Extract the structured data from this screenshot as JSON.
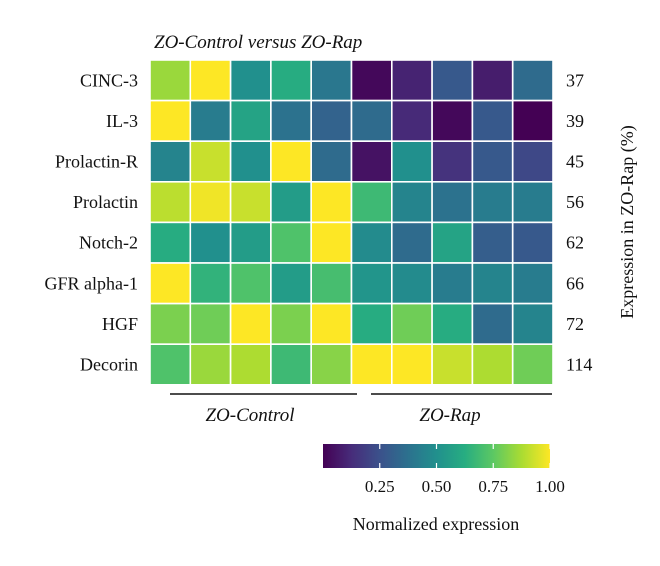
{
  "chart_data": {
    "type": "heatmap",
    "title": "ZO-Control versus ZO-Rap",
    "rows": [
      "CINC-3",
      "IL-3",
      "Prolactin-R",
      "Prolactin",
      "Notch-2",
      "GFR alpha-1",
      "HGF",
      "Decorin"
    ],
    "row_values": [
      "37",
      "39",
      "45",
      "56",
      "62",
      "66",
      "72",
      "114"
    ],
    "right_axis_label": "Expression in ZO-Rap (%)",
    "groups": [
      {
        "name": "ZO-Control",
        "columns": 5
      },
      {
        "name": "ZO-Rap",
        "columns": 5
      }
    ],
    "matrix": [
      [
        0.85,
        1.0,
        0.5,
        0.62,
        0.4,
        0.02,
        0.1,
        0.28,
        0.08,
        0.35
      ],
      [
        1.0,
        0.42,
        0.58,
        0.38,
        0.32,
        0.35,
        0.12,
        0.02,
        0.28,
        0.0
      ],
      [
        0.45,
        0.92,
        0.5,
        1.0,
        0.35,
        0.05,
        0.5,
        0.15,
        0.28,
        0.22
      ],
      [
        0.9,
        0.98,
        0.92,
        0.55,
        1.0,
        0.68,
        0.45,
        0.38,
        0.42,
        0.42
      ],
      [
        0.62,
        0.5,
        0.55,
        0.72,
        1.0,
        0.48,
        0.35,
        0.58,
        0.3,
        0.28
      ],
      [
        1.0,
        0.65,
        0.72,
        0.55,
        0.7,
        0.52,
        0.48,
        0.42,
        0.45,
        0.42
      ],
      [
        0.8,
        0.78,
        1.0,
        0.8,
        1.0,
        0.62,
        0.78,
        0.62,
        0.35,
        0.45
      ],
      [
        0.72,
        0.85,
        0.88,
        0.68,
        0.82,
        1.0,
        1.0,
        0.92,
        0.88,
        0.78
      ]
    ],
    "colorscale": "viridis",
    "colorbar": {
      "title": "Normalized expression",
      "ticks": [
        "0.25",
        "0.50",
        "0.75",
        "1.00"
      ],
      "range": [
        0.0,
        1.0
      ]
    }
  }
}
